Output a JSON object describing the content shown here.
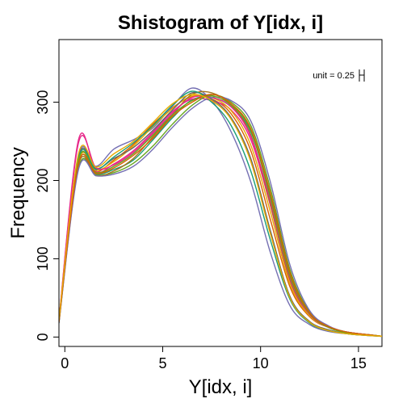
{
  "chart_data": {
    "type": "line",
    "title": "Shistogram of Y[idx, i]",
    "xlabel": "Y[idx, i]",
    "ylabel": "Frequency",
    "xlim": [
      -0.3,
      16.2
    ],
    "ylim": [
      -12,
      380
    ],
    "x_ticks": [
      0,
      5,
      10,
      15
    ],
    "y_ticks": [
      0,
      100,
      200,
      300
    ],
    "x_tick_labels": [
      "0",
      "5",
      "10",
      "15"
    ],
    "y_tick_labels": [
      "0",
      "100",
      "200",
      "300"
    ],
    "annotation": "unit = 0.25",
    "grid": false,
    "x": [
      -0.3,
      0.7,
      1.6,
      2.5,
      3.5,
      4.5,
      5.5,
      6.5,
      7.5,
      8.5,
      9.5,
      10.5,
      11.5,
      12.5,
      13.5,
      14.5,
      15.5,
      16.2
    ],
    "series": [
      {
        "color": "#1b9e77",
        "values": [
          18,
          222,
          208,
          214,
          226,
          252,
          280,
          303,
          306,
          294,
          262,
          180,
          80,
          30,
          12,
          6,
          3,
          1
        ]
      },
      {
        "color": "#d95f02",
        "values": [
          20,
          226,
          211,
          226,
          246,
          272,
          293,
          307,
          304,
          285,
          238,
          150,
          64,
          26,
          12,
          6,
          3,
          1
        ]
      },
      {
        "color": "#7570b3",
        "values": [
          22,
          232,
          218,
          240,
          252,
          267,
          295,
          318,
          302,
          262,
          198,
          108,
          40,
          16,
          7,
          4,
          2,
          1
        ]
      },
      {
        "color": "#e7298a",
        "values": [
          21,
          252,
          212,
          221,
          238,
          262,
          288,
          304,
          302,
          290,
          252,
          168,
          72,
          28,
          12,
          5,
          3,
          1
        ]
      },
      {
        "color": "#66a61e",
        "values": [
          19,
          216,
          207,
          210,
          222,
          244,
          272,
          296,
          309,
          300,
          270,
          190,
          86,
          32,
          13,
          6,
          3,
          1
        ]
      },
      {
        "color": "#e6ab02",
        "values": [
          20,
          224,
          213,
          224,
          244,
          269,
          292,
          308,
          306,
          289,
          245,
          160,
          68,
          27,
          12,
          5,
          3,
          1
        ]
      },
      {
        "color": "#a6761d",
        "values": [
          23,
          220,
          206,
          212,
          228,
          256,
          284,
          310,
          312,
          296,
          258,
          170,
          74,
          29,
          12,
          6,
          3,
          1
        ]
      },
      {
        "color": "#666666",
        "values": [
          21,
          230,
          215,
          228,
          242,
          264,
          290,
          312,
          304,
          280,
          228,
          136,
          52,
          20,
          9,
          4,
          2,
          1
        ]
      },
      {
        "color": "#1b9e77",
        "values": [
          20,
          228,
          214,
          230,
          248,
          270,
          296,
          314,
          300,
          270,
          212,
          124,
          48,
          18,
          8,
          4,
          2,
          1
        ]
      },
      {
        "color": "#e7298a",
        "values": [
          22,
          248,
          216,
          220,
          236,
          260,
          286,
          306,
          306,
          294,
          256,
          174,
          76,
          29,
          12,
          6,
          3,
          1
        ]
      },
      {
        "color": "#7570b3",
        "values": [
          18,
          214,
          206,
          208,
          218,
          240,
          268,
          292,
          306,
          302,
          276,
          198,
          92,
          34,
          14,
          6,
          3,
          1
        ]
      },
      {
        "color": "#66a61e",
        "values": [
          21,
          226,
          210,
          218,
          234,
          258,
          284,
          302,
          308,
          296,
          264,
          178,
          78,
          30,
          12,
          5,
          3,
          1
        ]
      },
      {
        "color": "#d95f02",
        "values": [
          19,
          222,
          209,
          216,
          232,
          254,
          282,
          300,
          310,
          298,
          266,
          184,
          82,
          31,
          13,
          6,
          3,
          1
        ]
      },
      {
        "color": "#e6ab02",
        "values": [
          22,
          234,
          217,
          234,
          250,
          274,
          298,
          310,
          302,
          278,
          224,
          132,
          50,
          19,
          8,
          4,
          2,
          1
        ]
      }
    ]
  }
}
